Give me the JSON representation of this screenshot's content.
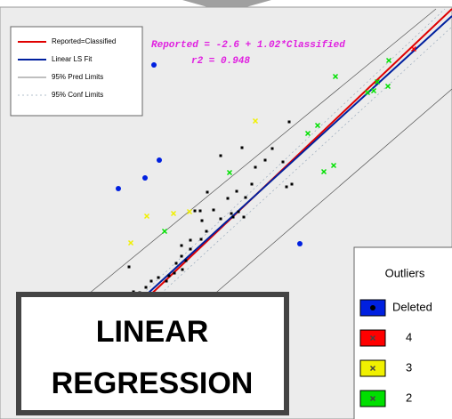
{
  "chart_data": {
    "type": "scatter",
    "equation": [
      "Reported = -2.6 + 1.02*Classified",
      "r2 = 0.948"
    ],
    "xlim": [
      0,
      508
    ],
    "ylim": [
      0,
      463
    ],
    "lines": [
      {
        "name": "Reported=Classified",
        "color": "#e00000",
        "x": [
          160,
          508
        ],
        "y": [
          131,
          461
        ]
      },
      {
        "name": "Linear LS Fit",
        "color": "#00209f",
        "x": [
          155,
          508
        ],
        "y": [
          131,
          453
        ]
      },
      {
        "name": "95% Pred Limits",
        "color": "#555555",
        "x": [
          100,
          490,
          null,
          230,
          508
        ],
        "y": [
          141,
          461,
          null,
          131,
          371
        ]
      },
      {
        "name": "95% Conf Limits",
        "color": "#9ab",
        "x": [
          150,
          500,
          null,
          170,
          508
        ],
        "y": [
          131,
          461,
          null,
          131,
          441
        ]
      }
    ],
    "series": [
      {
        "color": "#000000",
        "marker": "square",
        "x": [
          325,
          306,
          298,
          283,
          318,
          328,
          322,
          248,
          272,
          266,
          276,
          256,
          233,
          260,
          268,
          262,
          274,
          240,
          225,
          219,
          232,
          226,
          214,
          204,
          214,
          204,
          209,
          198,
          205,
          196,
          190,
          187,
          178,
          170,
          164,
          157,
          150,
          162,
          145,
          227,
          248,
          287
        ],
        "y": [
          334,
          304,
          291,
          264,
          289,
          264,
          261,
          296,
          305,
          256,
          249,
          248,
          255,
          231,
          233,
          227,
          227,
          235,
          234,
          234,
          211,
          202,
          201,
          195,
          191,
          183,
          178,
          175,
          168,
          164,
          161,
          155,
          159,
          155,
          148,
          142,
          143,
          134,
          171,
          223,
          225,
          283
        ]
      },
      {
        "name": "Deleted",
        "color": "#0020e0",
        "marker": "circle",
        "x": [
          173,
          133,
          163,
          179,
          337
        ],
        "y": [
          398,
          259,
          271,
          291,
          197
        ]
      },
      {
        "name": "4",
        "color": "#ff0000",
        "marker": "x",
        "x": [
          465
        ],
        "y": [
          416
        ]
      },
      {
        "name": "3",
        "color": "#f0f000",
        "marker": "x",
        "x": [
          287,
          165,
          195,
          147,
          213
        ],
        "y": [
          335,
          228,
          231,
          198,
          233
        ]
      },
      {
        "name": "2",
        "color": "#00e000",
        "marker": "x",
        "x": [
          377,
          437,
          346,
          357,
          258,
          185,
          364,
          375,
          413,
          424,
          436,
          420
        ],
        "y": [
          385,
          403,
          321,
          330,
          277,
          211,
          278,
          285,
          367,
          379,
          374,
          369
        ]
      }
    ],
    "outliers_title": "Outliers",
    "banner": [
      "LINEAR",
      "REGRESSION"
    ]
  }
}
